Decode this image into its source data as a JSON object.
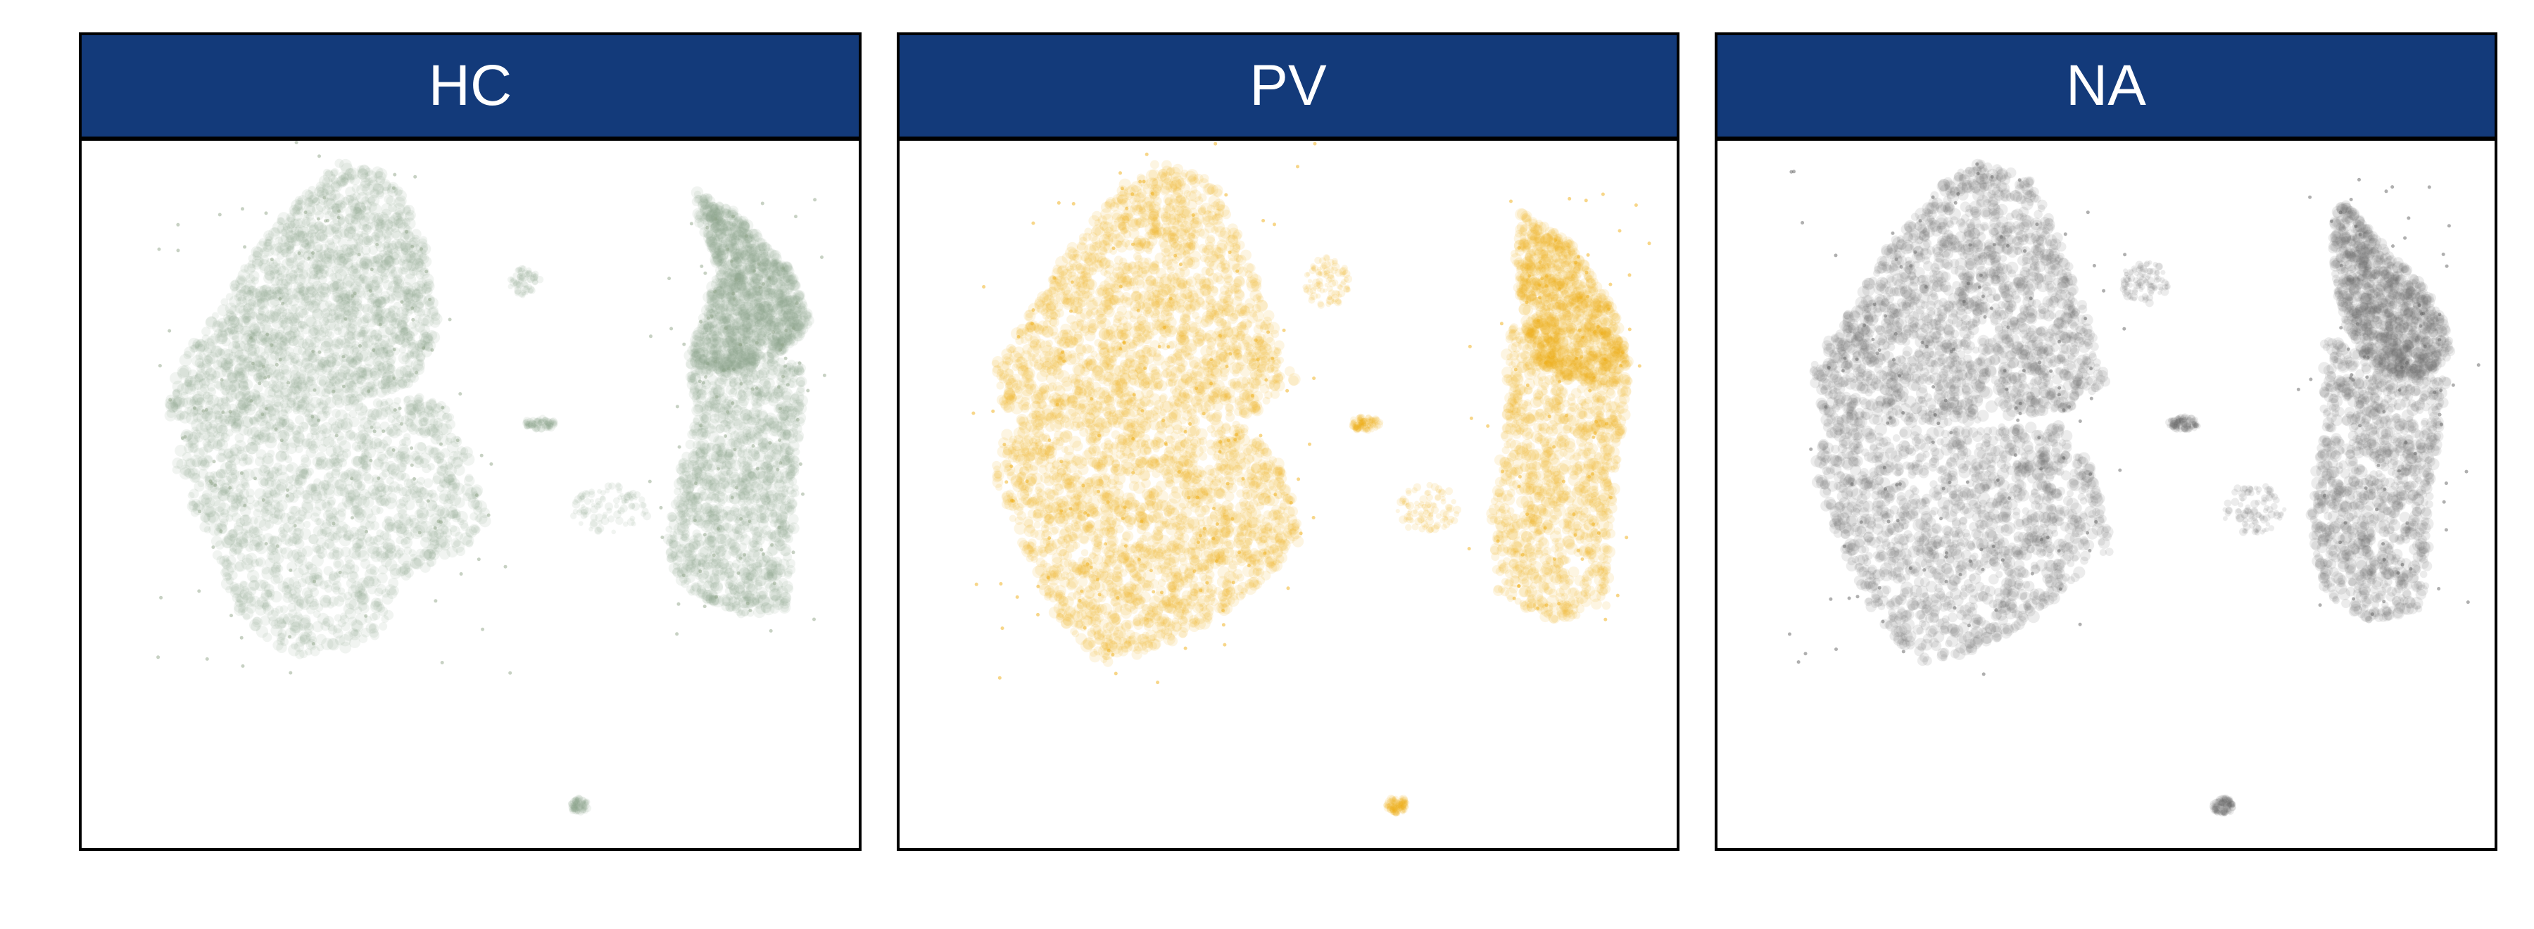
{
  "figure": {
    "header_color": "#133A7A",
    "point_opacity": 0.12
  },
  "chart_data": [
    {
      "type": "scatter",
      "title": "HC",
      "color": "#8FA488",
      "xlim": [
        0,
        1
      ],
      "ylim": [
        0,
        1
      ],
      "clusters": [
        {
          "name": "main-upper",
          "shape": "poly",
          "density": 1.0,
          "polygon": [
            [
              0.33,
              0.03
            ],
            [
              0.4,
              0.05
            ],
            [
              0.44,
              0.14
            ],
            [
              0.46,
              0.26
            ],
            [
              0.43,
              0.34
            ],
            [
              0.35,
              0.37
            ],
            [
              0.2,
              0.4
            ],
            [
              0.11,
              0.39
            ],
            [
              0.12,
              0.32
            ],
            [
              0.17,
              0.25
            ],
            [
              0.22,
              0.16
            ],
            [
              0.28,
              0.08
            ]
          ]
        },
        {
          "name": "main-lower",
          "shape": "poly",
          "density": 0.8,
          "polygon": [
            [
              0.14,
              0.4
            ],
            [
              0.25,
              0.39
            ],
            [
              0.37,
              0.37
            ],
            [
              0.46,
              0.36
            ],
            [
              0.49,
              0.42
            ],
            [
              0.53,
              0.54
            ],
            [
              0.49,
              0.58
            ],
            [
              0.41,
              0.62
            ],
            [
              0.39,
              0.7
            ],
            [
              0.33,
              0.72
            ],
            [
              0.26,
              0.73
            ],
            [
              0.2,
              0.66
            ],
            [
              0.15,
              0.54
            ],
            [
              0.12,
              0.46
            ]
          ]
        },
        {
          "name": "right-upper",
          "shape": "poly",
          "density": 0.7,
          "polygon": [
            [
              0.79,
              0.07
            ],
            [
              0.84,
              0.1
            ],
            [
              0.91,
              0.18
            ],
            [
              0.94,
              0.26
            ],
            [
              0.9,
              0.3
            ],
            [
              0.83,
              0.33
            ],
            [
              0.78,
              0.31
            ],
            [
              0.8,
              0.24
            ],
            [
              0.82,
              0.18
            ],
            [
              0.79,
              0.11
            ]
          ]
        },
        {
          "name": "right-lower",
          "shape": "poly",
          "density": 0.7,
          "polygon": [
            [
              0.78,
              0.31
            ],
            [
              0.87,
              0.3
            ],
            [
              0.93,
              0.32
            ],
            [
              0.92,
              0.48
            ],
            [
              0.91,
              0.66
            ],
            [
              0.85,
              0.67
            ],
            [
              0.78,
              0.64
            ],
            [
              0.75,
              0.58
            ],
            [
              0.77,
              0.47
            ],
            [
              0.79,
              0.38
            ]
          ]
        },
        {
          "name": "mid-blob",
          "shape": "blob",
          "density": 0.4,
          "cx": 0.68,
          "cy": 0.52,
          "rx": 0.05,
          "ry": 0.035
        },
        {
          "name": "small-a",
          "shape": "blob",
          "density": 0.2,
          "cx": 0.57,
          "cy": 0.2,
          "rx": 0.02,
          "ry": 0.02
        },
        {
          "name": "small-b",
          "shape": "blob",
          "density": 0.3,
          "cx": 0.59,
          "cy": 0.4,
          "rx": 0.02,
          "ry": 0.008
        },
        {
          "name": "small-c",
          "shape": "blob",
          "density": 0.3,
          "cx": 0.64,
          "cy": 0.94,
          "rx": 0.012,
          "ry": 0.01
        }
      ]
    },
    {
      "type": "scatter",
      "title": "PV",
      "color": "#F0AE14",
      "xlim": [
        0,
        1
      ],
      "ylim": [
        0,
        1
      ],
      "clusters": [
        {
          "name": "main-upper",
          "shape": "poly",
          "density": 1.0,
          "polygon": [
            [
              0.33,
              0.03
            ],
            [
              0.4,
              0.05
            ],
            [
              0.44,
              0.14
            ],
            [
              0.48,
              0.26
            ],
            [
              0.51,
              0.34
            ],
            [
              0.45,
              0.39
            ],
            [
              0.3,
              0.41
            ],
            [
              0.14,
              0.4
            ],
            [
              0.12,
              0.32
            ],
            [
              0.17,
              0.24
            ],
            [
              0.22,
              0.15
            ],
            [
              0.28,
              0.07
            ]
          ]
        },
        {
          "name": "main-lower",
          "shape": "poly",
          "density": 1.0,
          "polygon": [
            [
              0.14,
              0.4
            ],
            [
              0.28,
              0.41
            ],
            [
              0.44,
              0.4
            ],
            [
              0.49,
              0.46
            ],
            [
              0.52,
              0.56
            ],
            [
              0.47,
              0.62
            ],
            [
              0.4,
              0.68
            ],
            [
              0.33,
              0.72
            ],
            [
              0.26,
              0.74
            ],
            [
              0.2,
              0.67
            ],
            [
              0.15,
              0.55
            ],
            [
              0.12,
              0.47
            ]
          ]
        },
        {
          "name": "right-upper",
          "shape": "poly",
          "density": 0.5,
          "polygon": [
            [
              0.8,
              0.1
            ],
            [
              0.86,
              0.14
            ],
            [
              0.92,
              0.24
            ],
            [
              0.94,
              0.32
            ],
            [
              0.89,
              0.34
            ],
            [
              0.82,
              0.32
            ],
            [
              0.8,
              0.24
            ],
            [
              0.79,
              0.16
            ]
          ]
        },
        {
          "name": "right-lower",
          "shape": "poly",
          "density": 0.6,
          "polygon": [
            [
              0.78,
              0.26
            ],
            [
              0.87,
              0.28
            ],
            [
              0.94,
              0.34
            ],
            [
              0.92,
              0.48
            ],
            [
              0.91,
              0.66
            ],
            [
              0.84,
              0.68
            ],
            [
              0.77,
              0.64
            ],
            [
              0.76,
              0.52
            ],
            [
              0.78,
              0.4
            ]
          ]
        },
        {
          "name": "mid-blob",
          "shape": "blob",
          "density": 0.4,
          "cx": 0.68,
          "cy": 0.52,
          "rx": 0.04,
          "ry": 0.035
        },
        {
          "name": "small-a",
          "shape": "blob",
          "density": 0.4,
          "cx": 0.55,
          "cy": 0.2,
          "rx": 0.03,
          "ry": 0.035
        },
        {
          "name": "small-b",
          "shape": "blob",
          "density": 0.4,
          "cx": 0.6,
          "cy": 0.4,
          "rx": 0.02,
          "ry": 0.01
        },
        {
          "name": "small-c",
          "shape": "blob",
          "density": 0.4,
          "cx": 0.64,
          "cy": 0.94,
          "rx": 0.015,
          "ry": 0.012
        }
      ]
    },
    {
      "type": "scatter",
      "title": "NA",
      "color": "#606060",
      "xlim": [
        0,
        1
      ],
      "ylim": [
        0,
        1
      ],
      "clusters": [
        {
          "name": "main-upper",
          "shape": "poly",
          "density": 1.0,
          "polygon": [
            [
              0.33,
              0.03
            ],
            [
              0.4,
              0.05
            ],
            [
              0.44,
              0.14
            ],
            [
              0.48,
              0.26
            ],
            [
              0.5,
              0.34
            ],
            [
              0.45,
              0.38
            ],
            [
              0.3,
              0.4
            ],
            [
              0.14,
              0.4
            ],
            [
              0.12,
              0.32
            ],
            [
              0.17,
              0.24
            ],
            [
              0.22,
              0.15
            ],
            [
              0.28,
              0.07
            ]
          ]
        },
        {
          "name": "main-lower",
          "shape": "poly",
          "density": 0.8,
          "polygon": [
            [
              0.14,
              0.4
            ],
            [
              0.28,
              0.41
            ],
            [
              0.44,
              0.4
            ],
            [
              0.48,
              0.46
            ],
            [
              0.51,
              0.58
            ],
            [
              0.46,
              0.62
            ],
            [
              0.4,
              0.68
            ],
            [
              0.33,
              0.72
            ],
            [
              0.26,
              0.74
            ],
            [
              0.2,
              0.67
            ],
            [
              0.15,
              0.55
            ],
            [
              0.12,
              0.47
            ]
          ]
        },
        {
          "name": "right-upper",
          "shape": "poly",
          "density": 0.5,
          "polygon": [
            [
              0.8,
              0.08
            ],
            [
              0.85,
              0.14
            ],
            [
              0.92,
              0.22
            ],
            [
              0.95,
              0.3
            ],
            [
              0.9,
              0.34
            ],
            [
              0.84,
              0.32
            ],
            [
              0.8,
              0.24
            ],
            [
              0.79,
              0.14
            ]
          ]
        },
        {
          "name": "right-lower",
          "shape": "poly",
          "density": 0.6,
          "polygon": [
            [
              0.78,
              0.28
            ],
            [
              0.88,
              0.3
            ],
            [
              0.94,
              0.34
            ],
            [
              0.92,
              0.48
            ],
            [
              0.91,
              0.66
            ],
            [
              0.84,
              0.68
            ],
            [
              0.78,
              0.64
            ],
            [
              0.76,
              0.52
            ],
            [
              0.78,
              0.4
            ]
          ]
        },
        {
          "name": "mid-blob",
          "shape": "blob",
          "density": 0.4,
          "cx": 0.69,
          "cy": 0.52,
          "rx": 0.04,
          "ry": 0.035
        },
        {
          "name": "small-a",
          "shape": "blob",
          "density": 0.4,
          "cx": 0.55,
          "cy": 0.2,
          "rx": 0.03,
          "ry": 0.03
        },
        {
          "name": "small-b",
          "shape": "blob",
          "density": 0.4,
          "cx": 0.6,
          "cy": 0.4,
          "rx": 0.02,
          "ry": 0.01
        },
        {
          "name": "small-c",
          "shape": "blob",
          "density": 0.4,
          "cx": 0.65,
          "cy": 0.94,
          "rx": 0.014,
          "ry": 0.012
        }
      ]
    }
  ]
}
